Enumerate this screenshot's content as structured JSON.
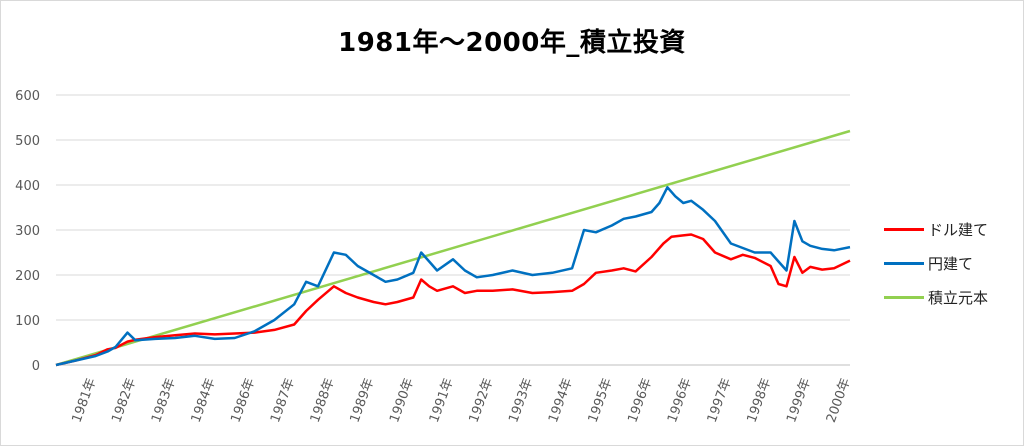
{
  "chart_data": {
    "type": "line",
    "title": "1981年～2000年_積立投資",
    "ylim": [
      0,
      600
    ],
    "yticks": [
      "0",
      "100",
      "200",
      "300",
      "400",
      "500",
      "600"
    ],
    "xticks": [
      "1981年",
      "1982年",
      "1983年",
      "1984年",
      "1986年",
      "1987年",
      "1988年",
      "1989年",
      "1990年",
      "1991年",
      "1992年",
      "1993年",
      "1994年",
      "1995年",
      "1996年",
      "1996年",
      "1997年",
      "1998年",
      "1999年",
      "2000年"
    ],
    "grid": true,
    "legend_position": "right",
    "series": [
      {
        "name": "ドル建て",
        "color": "#ff0000",
        "points": [
          [
            0,
            0
          ],
          [
            0.5,
            10
          ],
          [
            1,
            22
          ],
          [
            1.3,
            35
          ],
          [
            1.5,
            38
          ],
          [
            1.8,
            52
          ],
          [
            2,
            56
          ],
          [
            2.5,
            62
          ],
          [
            3,
            66
          ],
          [
            3.5,
            70
          ],
          [
            4,
            68
          ],
          [
            4.5,
            70
          ],
          [
            5,
            72
          ],
          [
            5.5,
            78
          ],
          [
            6,
            90
          ],
          [
            6.3,
            120
          ],
          [
            6.6,
            145
          ],
          [
            7,
            175
          ],
          [
            7.3,
            160
          ],
          [
            7.6,
            150
          ],
          [
            8,
            140
          ],
          [
            8.3,
            135
          ],
          [
            8.6,
            140
          ],
          [
            9,
            150
          ],
          [
            9.2,
            190
          ],
          [
            9.4,
            175
          ],
          [
            9.6,
            165
          ],
          [
            10,
            175
          ],
          [
            10.3,
            160
          ],
          [
            10.6,
            165
          ],
          [
            11,
            165
          ],
          [
            11.5,
            168
          ],
          [
            12,
            160
          ],
          [
            12.5,
            162
          ],
          [
            13,
            165
          ],
          [
            13.3,
            180
          ],
          [
            13.6,
            205
          ],
          [
            14,
            210
          ],
          [
            14.3,
            215
          ],
          [
            14.6,
            208
          ],
          [
            15,
            240
          ],
          [
            15.3,
            270
          ],
          [
            15.5,
            285
          ],
          [
            15.8,
            288
          ],
          [
            16,
            290
          ],
          [
            16.3,
            280
          ],
          [
            16.6,
            250
          ],
          [
            17,
            235
          ],
          [
            17.3,
            245
          ],
          [
            17.6,
            238
          ],
          [
            18,
            220
          ],
          [
            18.2,
            180
          ],
          [
            18.4,
            175
          ],
          [
            18.6,
            240
          ],
          [
            18.8,
            205
          ],
          [
            19,
            218
          ],
          [
            19.3,
            212
          ],
          [
            19.6,
            215
          ],
          [
            20,
            232
          ]
        ]
      },
      {
        "name": "円建て",
        "color": "#0070c0",
        "points": [
          [
            0,
            0
          ],
          [
            0.5,
            10
          ],
          [
            1,
            20
          ],
          [
            1.3,
            30
          ],
          [
            1.5,
            40
          ],
          [
            1.8,
            72
          ],
          [
            2,
            55
          ],
          [
            2.5,
            58
          ],
          [
            3,
            60
          ],
          [
            3.5,
            65
          ],
          [
            4,
            58
          ],
          [
            4.5,
            60
          ],
          [
            5,
            75
          ],
          [
            5.5,
            100
          ],
          [
            6,
            135
          ],
          [
            6.3,
            185
          ],
          [
            6.6,
            175
          ],
          [
            7,
            250
          ],
          [
            7.3,
            245
          ],
          [
            7.6,
            220
          ],
          [
            8,
            200
          ],
          [
            8.3,
            185
          ],
          [
            8.6,
            190
          ],
          [
            9,
            205
          ],
          [
            9.2,
            250
          ],
          [
            9.4,
            230
          ],
          [
            9.6,
            210
          ],
          [
            10,
            235
          ],
          [
            10.3,
            210
          ],
          [
            10.6,
            195
          ],
          [
            11,
            200
          ],
          [
            11.5,
            210
          ],
          [
            12,
            200
          ],
          [
            12.5,
            205
          ],
          [
            13,
            215
          ],
          [
            13.3,
            300
          ],
          [
            13.6,
            295
          ],
          [
            14,
            310
          ],
          [
            14.3,
            325
          ],
          [
            14.6,
            330
          ],
          [
            15,
            340
          ],
          [
            15.2,
            360
          ],
          [
            15.4,
            395
          ],
          [
            15.6,
            375
          ],
          [
            15.8,
            360
          ],
          [
            16,
            365
          ],
          [
            16.3,
            345
          ],
          [
            16.6,
            320
          ],
          [
            17,
            270
          ],
          [
            17.3,
            260
          ],
          [
            17.6,
            250
          ],
          [
            18,
            250
          ],
          [
            18.2,
            230
          ],
          [
            18.4,
            210
          ],
          [
            18.6,
            320
          ],
          [
            18.8,
            275
          ],
          [
            19,
            265
          ],
          [
            19.3,
            258
          ],
          [
            19.6,
            255
          ],
          [
            20,
            262
          ]
        ]
      },
      {
        "name": "積立元本",
        "color": "#92d050",
        "points": [
          [
            0,
            0
          ],
          [
            20,
            520
          ]
        ]
      }
    ]
  }
}
